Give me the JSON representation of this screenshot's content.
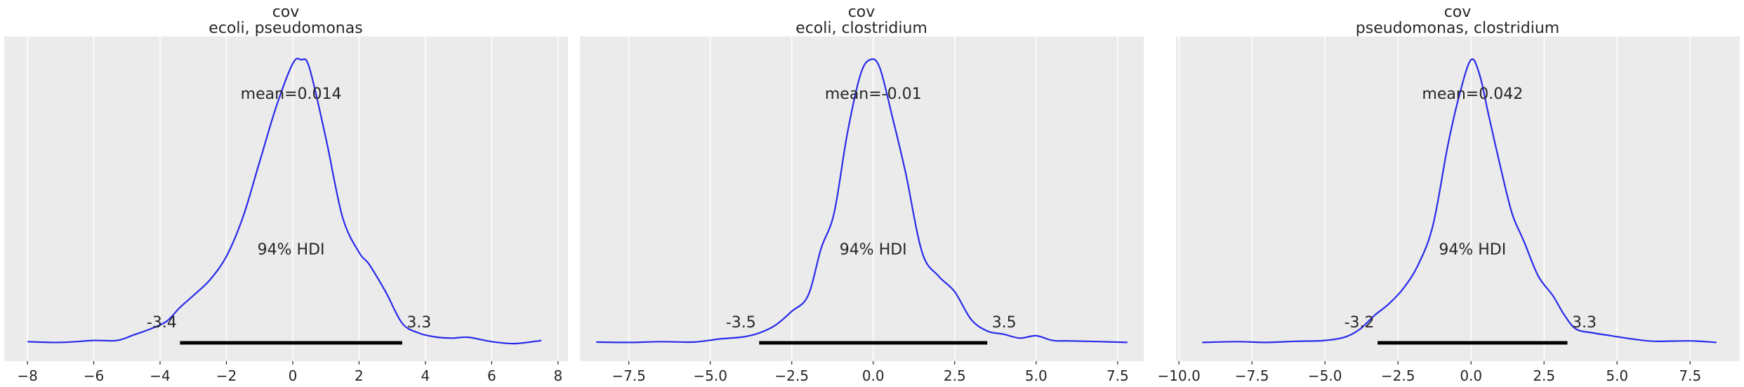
{
  "chart_data": [
    {
      "type": "line",
      "title_line1": "cov",
      "title_line2": "ecoli, pseudomonas",
      "xlim": [
        -8.7,
        8.3
      ],
      "ticks": [
        -8,
        -6,
        -4,
        -2,
        0,
        2,
        4,
        6,
        8
      ],
      "tick_labels": [
        "−8",
        "−6",
        "−4",
        "−2",
        "0",
        "2",
        "4",
        "6",
        "8"
      ],
      "mean_label": "mean=0.014",
      "hdi_label": "94% HDI",
      "hdi_low": -3.4,
      "hdi_high": 3.3,
      "hdi_low_label": "-3.4",
      "hdi_high_label": "3.3",
      "grid": true,
      "series": [
        {
          "x": [
            -8.0,
            -7.0,
            -6.0,
            -5.3,
            -4.8,
            -4.3,
            -3.8,
            -3.4,
            -3.0,
            -2.5,
            -2.0,
            -1.5,
            -1.0,
            -0.5,
            0.0,
            0.25,
            0.5,
            1.0,
            1.5,
            2.0,
            2.3,
            2.8,
            3.3,
            3.8,
            4.3,
            4.8,
            5.3,
            6.0,
            6.7,
            7.5
          ],
          "y": [
            0.003,
            0.001,
            0.006,
            0.006,
            0.02,
            0.035,
            0.055,
            0.09,
            0.12,
            0.16,
            0.22,
            0.32,
            0.46,
            0.6,
            0.71,
            0.72,
            0.7,
            0.52,
            0.32,
            0.23,
            0.2,
            0.13,
            0.05,
            0.025,
            0.015,
            0.012,
            0.014,
            0.003,
            -0.002,
            0.006
          ]
        }
      ]
    },
    {
      "type": "line",
      "title_line1": "cov",
      "title_line2": "ecoli, clostridium",
      "xlim": [
        -9.0,
        8.3
      ],
      "ticks": [
        -7.5,
        -5.0,
        -2.5,
        0.0,
        2.5,
        5.0,
        7.5
      ],
      "tick_labels": [
        "−7.5",
        "−5.0",
        "−2.5",
        "0.0",
        "2.5",
        "5.0",
        "7.5"
      ],
      "mean_label": "mean=-0.01",
      "hdi_label": "94% HDI",
      "hdi_low": -3.5,
      "hdi_high": 3.5,
      "hdi_low_label": "-3.5",
      "hdi_high_label": "3.5",
      "grid": true,
      "series": [
        {
          "x": [
            -8.5,
            -7.5,
            -6.5,
            -5.5,
            -4.7,
            -4.0,
            -3.5,
            -3.0,
            -2.5,
            -2.0,
            -1.6,
            -1.2,
            -0.8,
            -0.4,
            -0.1,
            0.2,
            0.6,
            1.0,
            1.5,
            2.0,
            2.5,
            3.0,
            3.5,
            4.0,
            4.5,
            5.0,
            5.5,
            6.0,
            7.0,
            7.8
          ],
          "y": [
            0.002,
            0.001,
            0.003,
            0.002,
            0.01,
            0.015,
            0.025,
            0.045,
            0.08,
            0.12,
            0.24,
            0.33,
            0.53,
            0.68,
            0.72,
            0.7,
            0.57,
            0.43,
            0.23,
            0.17,
            0.13,
            0.06,
            0.03,
            0.022,
            0.012,
            0.018,
            0.006,
            0.005,
            0.003,
            0.001
          ]
        }
      ]
    },
    {
      "type": "line",
      "title_line1": "cov",
      "title_line2": "pseudomonas, clostridium",
      "xlim": [
        -10.1,
        9.2
      ],
      "ticks": [
        -10.0,
        -7.5,
        -5.0,
        -2.5,
        0.0,
        2.5,
        5.0,
        7.5
      ],
      "tick_labels": [
        "−10.0",
        "−7.5",
        "−5.0",
        "−2.5",
        "0.0",
        "2.5",
        "5.0",
        "7.5"
      ],
      "mean_label": "mean=0.042",
      "hdi_label": "94% HDI",
      "hdi_low": -3.2,
      "hdi_high": 3.3,
      "hdi_low_label": "-3.2",
      "hdi_high_label": "3.3",
      "grid": true,
      "series": [
        {
          "x": [
            -9.2,
            -8.0,
            -7.0,
            -6.0,
            -5.0,
            -4.3,
            -3.8,
            -3.3,
            -2.8,
            -2.3,
            -1.8,
            -1.3,
            -0.8,
            -0.4,
            0.0,
            0.3,
            0.6,
            1.0,
            1.4,
            1.8,
            2.3,
            2.8,
            3.2,
            3.6,
            4.2,
            4.8,
            5.5,
            6.3,
            7.5,
            8.4
          ],
          "y": [
            0.001,
            0.003,
            0.001,
            0.004,
            0.006,
            0.015,
            0.035,
            0.07,
            0.1,
            0.14,
            0.2,
            0.3,
            0.5,
            0.63,
            0.72,
            0.68,
            0.58,
            0.45,
            0.33,
            0.26,
            0.17,
            0.12,
            0.07,
            0.035,
            0.025,
            0.018,
            0.01,
            0.004,
            0.005,
            0.001
          ]
        }
      ]
    }
  ]
}
